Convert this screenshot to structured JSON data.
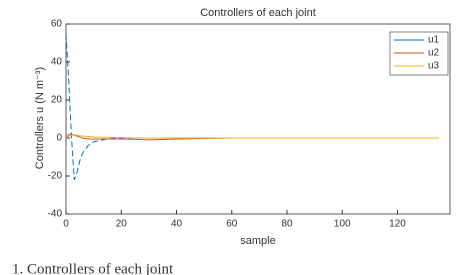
{
  "chart_data": {
    "type": "line",
    "title": "Controllers of each joint",
    "x_label": "sample",
    "y_label": "Controllers u (N m⁻³)",
    "caption": "1.  Controllers of each joint",
    "x": [
      0,
      1,
      2,
      3,
      4,
      5,
      6,
      8,
      10,
      15,
      20,
      30,
      40,
      60,
      80,
      100,
      120,
      135
    ],
    "series": [
      {
        "name": "u1",
        "color": "#0072bd",
        "values": [
          55,
          30,
          0,
          -22,
          -18,
          -12,
          -8,
          -4,
          -2,
          -0.5,
          0,
          0,
          0,
          0,
          0,
          0,
          0,
          0
        ]
      },
      {
        "name": "u2",
        "color": "#d95319",
        "values": [
          0,
          2,
          2,
          1.5,
          1,
          0.5,
          0,
          -0.5,
          -0.5,
          -0.5,
          -0.5,
          -1,
          -0.5,
          0,
          0,
          0,
          0,
          0
        ]
      },
      {
        "name": "u3",
        "color": "#edb120",
        "values": [
          0,
          1,
          1.5,
          1.5,
          1.5,
          1.2,
          1,
          0.8,
          0.5,
          0.3,
          0.2,
          0,
          0,
          0,
          0,
          0,
          0,
          0
        ]
      }
    ],
    "xlim": [
      0,
      139
    ],
    "xticks": [
      0,
      20,
      40,
      60,
      80,
      100,
      120
    ],
    "ylim": [
      -40,
      60
    ],
    "yticks": [
      -40,
      -20,
      0,
      20,
      40,
      60
    ],
    "legend": "upper right"
  }
}
